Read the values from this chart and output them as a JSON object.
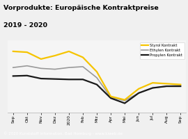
{
  "title_line1": "Vorprodukte: Europäische Kontraktpreise",
  "title_line2": "2019 - 2020",
  "title_color": "#000000",
  "title_bg": "#f5c400",
  "x_labels": [
    "Sep",
    "Okt",
    "Nov",
    "Dez",
    "2020",
    "Feb",
    "Mrz",
    "Apr",
    "Mai",
    "Jun",
    "Jul",
    "Aug",
    "Sep"
  ],
  "styrol": [
    920,
    910,
    830,
    870,
    920,
    850,
    680,
    390,
    350,
    480,
    550,
    540,
    530
  ],
  "ethylen": [
    730,
    750,
    720,
    710,
    730,
    740,
    610,
    380,
    340,
    430,
    490,
    510,
    520
  ],
  "propylen": [
    630,
    635,
    600,
    595,
    590,
    590,
    530,
    370,
    310,
    430,
    490,
    510,
    510
  ],
  "styrol_color": "#f5c400",
  "ethylen_color": "#999999",
  "propylen_color": "#1a1a1a",
  "outer_bg": "#f0f0f0",
  "plot_bg": "#f5f5f5",
  "footer_bg": "#7a7a7a",
  "footer_text": "© 2020 Kunststoff Information, Bad Homburg - www.kiweb.de",
  "footer_color": "#ffffff",
  "legend_labels": [
    "Styrol Kontrakt",
    "Ethylen Kontrakt",
    "Propylen Kontrakt"
  ]
}
